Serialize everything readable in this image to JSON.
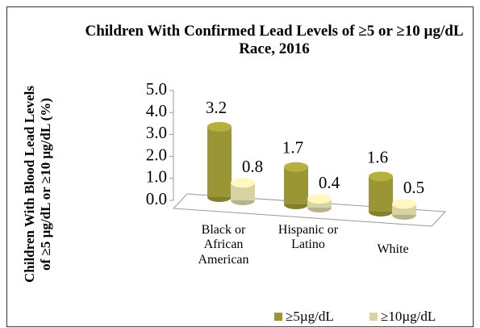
{
  "chart_data": {
    "type": "bar3d",
    "title": "Children With Confirmed Lead Levels of ≥5 or ≥10 µg/dL Race, 2016",
    "y_label": "Children With Blood Lead Levels of ≥5 µg/dL or ≥10 µg/dL (%)",
    "categories": [
      "Black or African American",
      "Hispanic or Latino",
      "White"
    ],
    "series": [
      {
        "name": "≥5µg/dL",
        "color": "#9a9535",
        "values": [
          3.2,
          1.7,
          1.6
        ]
      },
      {
        "name": "≥10µg/dL",
        "color": "#d8d3a2",
        "values": [
          0.8,
          0.4,
          0.5
        ]
      }
    ],
    "ylim": [
      0,
      5
    ],
    "yticks": [
      {
        "value": 0,
        "label": "0.0"
      },
      {
        "value": 1,
        "label": "1.0"
      },
      {
        "value": 2,
        "label": "2.0"
      },
      {
        "value": 3,
        "label": "3.0"
      },
      {
        "value": 4,
        "label": "4.0"
      },
      {
        "value": 5,
        "label": "5.0"
      }
    ],
    "legend": "bottom-right"
  }
}
